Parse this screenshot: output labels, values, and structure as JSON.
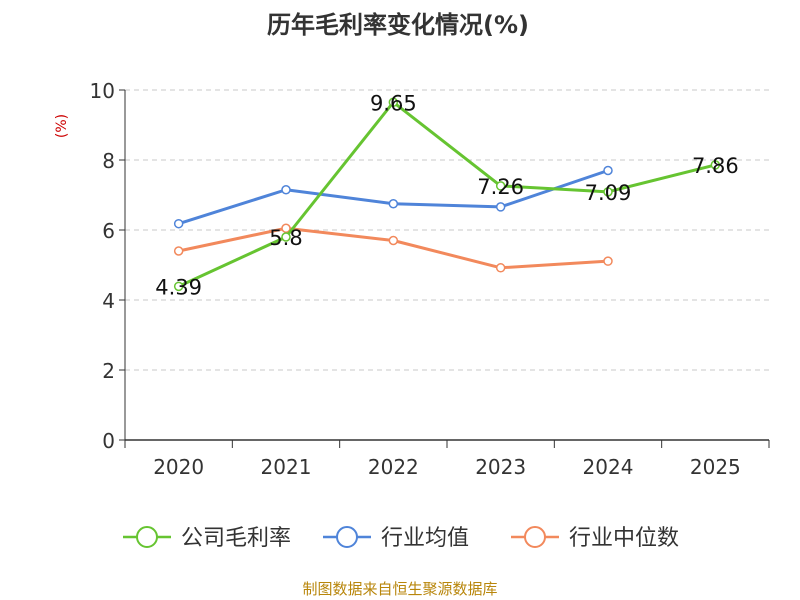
{
  "chart_data": {
    "type": "line",
    "title": "历年毛利率变化情况(%)",
    "ylabel": "(%)",
    "categories": [
      "2020",
      "2021",
      "2022",
      "2023",
      "2024",
      "2025"
    ],
    "ylim": [
      0,
      10
    ],
    "yticks": [
      0,
      2,
      4,
      6,
      8,
      10
    ],
    "grid": true,
    "legend_position": "bottom",
    "series": [
      {
        "name": "公司毛利率",
        "color": "#66c431",
        "values": [
          4.39,
          5.8,
          9.65,
          7.26,
          7.09,
          7.86
        ],
        "labels": [
          "4.39",
          "5.8",
          "9.65",
          "7.26",
          "7.09",
          "7.86"
        ]
      },
      {
        "name": "行业均值",
        "color": "#4f84d9",
        "values": [
          6.18,
          7.15,
          6.75,
          6.66,
          7.7,
          null
        ]
      },
      {
        "name": "行业中位数",
        "color": "#f2895c",
        "values": [
          5.4,
          6.05,
          5.7,
          4.92,
          5.11,
          null
        ]
      }
    ]
  },
  "footer": {
    "source": "制图数据来自恒生聚源数据库"
  }
}
